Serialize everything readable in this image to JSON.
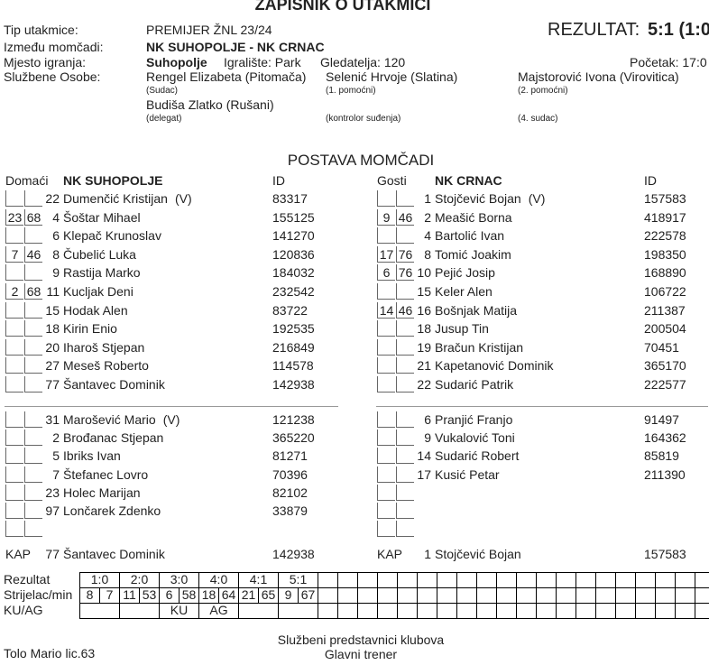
{
  "title": "ZAPISNIK O UTAKMICI",
  "info": {
    "match_type_label": "Tip utakmice:",
    "match_type": "PREMIJER ŽNL 23/24",
    "result_label": "REZULTAT:",
    "result": "5:1 (1:0",
    "teams_label": "Između momčadi:",
    "teams": "NK SUHOPOLJE - NK CRNAC",
    "venue_label": "Mjesto igranja:",
    "venue": "Suhopolje",
    "ground": "Igralište: Park",
    "spectators": "Gledatelja: 120",
    "kickoff": "Početak: 17:0",
    "officials_label": "Službene Osobe:"
  },
  "officials": [
    {
      "name": "Rengel Elizabeta (Pitomača)",
      "role": "(Sudac)"
    },
    {
      "name": "Selenić Hrvoje (Slatina)",
      "role": "(1. pomoćni)"
    },
    {
      "name": "Majstorović Ivona (Virovitica)",
      "role": "(2. pomoćni)"
    },
    {
      "name": "Budiša Zlatko (Rušani)",
      "role": "(delegat)"
    },
    {
      "role": "(kontrolor suđenja)"
    },
    {
      "role": "(4. sudac)"
    }
  ],
  "lineup_title": "POSTAVA MOMČADI",
  "teams": [
    {
      "side": "Domaći",
      "name": "NK SUHOPOLJE",
      "id_label": "ID",
      "starters": [
        {
          "number": 22,
          "name": "Dumenčić Kristijan",
          "captain": "(V)",
          "id": 83317
        },
        {
          "sub": [
            23,
            68
          ],
          "number": 4,
          "name": "Šoštar Mihael",
          "id": 155125
        },
        {
          "number": 6,
          "name": "Klepač Krunoslav",
          "id": 141270
        },
        {
          "sub": [
            7,
            46
          ],
          "number": 8,
          "name": "Čubelić Luka",
          "id": 120836
        },
        {
          "number": 9,
          "name": "Rastija Marko",
          "id": 184032
        },
        {
          "sub": [
            2,
            68
          ],
          "number": 11,
          "name": "Kucljak Deni",
          "id": 232542
        },
        {
          "number": 15,
          "name": "Hodak Alen",
          "id": 83722
        },
        {
          "number": 18,
          "name": "Kirin Enio",
          "id": 192535
        },
        {
          "number": 20,
          "name": "Iharoš Stjepan",
          "id": 216849
        },
        {
          "number": 27,
          "name": "Meseš Roberto",
          "id": 114578
        },
        {
          "number": 77,
          "name": "Šantavec Dominik",
          "id": 142938
        }
      ],
      "substitutes": [
        {
          "number": 31,
          "name": "Marošević Mario",
          "captain": "(V)",
          "id": 121238
        },
        {
          "number": 2,
          "name": "Brođanac Stjepan",
          "id": 365220
        },
        {
          "number": 5,
          "name": "Ibriks Ivan",
          "id": 81271
        },
        {
          "number": 7,
          "name": "Štefanec Lovro",
          "id": 70396
        },
        {
          "number": 23,
          "name": "Holec Marijan",
          "id": 82102
        },
        {
          "number": 97,
          "name": "Lončarek Zdenko",
          "id": 33879
        }
      ],
      "captain": {
        "label": "KAP",
        "number": 77,
        "name": "Šantavec Dominik",
        "id": 142938
      }
    },
    {
      "side": "Gosti",
      "name": "NK CRNAC",
      "id_label": "ID",
      "starters": [
        {
          "number": 1,
          "name": "Stojčević Bojan",
          "captain": "(V)",
          "id": 157583
        },
        {
          "sub": [
            9,
            46
          ],
          "number": 2,
          "name": "Meašić Borna",
          "id": 418917
        },
        {
          "number": 4,
          "name": "Bartolić Ivan",
          "id": 222578
        },
        {
          "sub": [
            17,
            76
          ],
          "number": 8,
          "name": "Tomić Joakim",
          "id": 198350
        },
        {
          "sub": [
            6,
            76
          ],
          "number": 10,
          "name": "Pejić Josip",
          "id": 168890
        },
        {
          "number": 15,
          "name": "Keler Alen",
          "id": 106722
        },
        {
          "sub": [
            14,
            46
          ],
          "number": 16,
          "name": "Bošnjak Matija",
          "id": 211387
        },
        {
          "number": 18,
          "name": "Jusup Tin",
          "id": 200504
        },
        {
          "number": 19,
          "name": "Bračun Kristijan",
          "id": 70451
        },
        {
          "number": 21,
          "name": "Kapetanović Dominik",
          "id": 365170
        },
        {
          "number": 22,
          "name": "Sudarić Patrik",
          "id": 222577
        }
      ],
      "substitutes": [
        {
          "number": 6,
          "name": "Pranjić Franjo",
          "id": 91497
        },
        {
          "number": 9,
          "name": "Vukalović Toni",
          "id": 164362
        },
        {
          "number": 14,
          "name": "Sudarić Robert",
          "id": 85819
        },
        {
          "number": 17,
          "name": "Kusić Petar",
          "id": 211390
        }
      ],
      "captain": {
        "label": "KAP",
        "number": 1,
        "name": "Stojčević Bojan",
        "id": 157583
      }
    }
  ],
  "score_table": {
    "labels": [
      "Rezultat",
      "Strijelac/min",
      "KU/AG"
    ],
    "goals": [
      {
        "score": "1:0",
        "scorer": 8,
        "minute": 7
      },
      {
        "score": "2:0",
        "scorer": 11,
        "minute": 53
      },
      {
        "score": "3:0",
        "scorer": 6,
        "minute": 58,
        "type": "KU"
      },
      {
        "score": "4:0",
        "scorer": 18,
        "minute": 64,
        "type": "AG"
      },
      {
        "score": "4:1",
        "scorer": 21,
        "minute": 65
      },
      {
        "score": "5:1",
        "scorer": 9,
        "minute": 67
      }
    ]
  },
  "footer": {
    "heading": "Službeni predstavnici klubova",
    "role": "Glavni trener",
    "coach": "Tolo Mario lic.63"
  }
}
